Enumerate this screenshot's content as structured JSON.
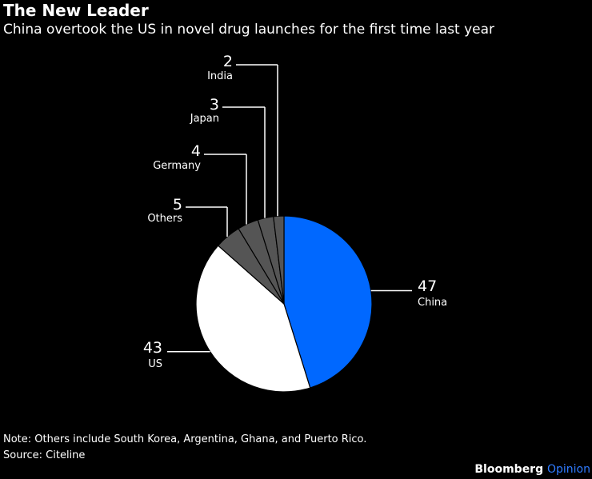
{
  "title": "The New Leader",
  "subtitle": "China overtook the US in novel drug launches for the first time last year",
  "note": "Note: Others include South Korea, Argentina, Ghana, and Puerto Rico.",
  "source": "Source: Citeline",
  "branding": {
    "name": "Bloomberg",
    "suffix": "Opinion",
    "name_color": "#ffffff",
    "suffix_color": "#2f7bff"
  },
  "colors": {
    "background": "#000000",
    "text": "#ffffff"
  },
  "chart_data": {
    "type": "pie",
    "start": "12 o'clock, clockwise",
    "slices": [
      {
        "label": "China",
        "value": 47,
        "color": "#0068ff"
      },
      {
        "label": "US",
        "value": 43,
        "color": "#ffffff"
      },
      {
        "label": "Others",
        "value": 5,
        "color": "#555555"
      },
      {
        "label": "Germany",
        "value": 4,
        "color": "#555555"
      },
      {
        "label": "Japan",
        "value": 3,
        "color": "#555555"
      },
      {
        "label": "India",
        "value": 2,
        "color": "#555555"
      }
    ],
    "slice_border": "#000000"
  }
}
